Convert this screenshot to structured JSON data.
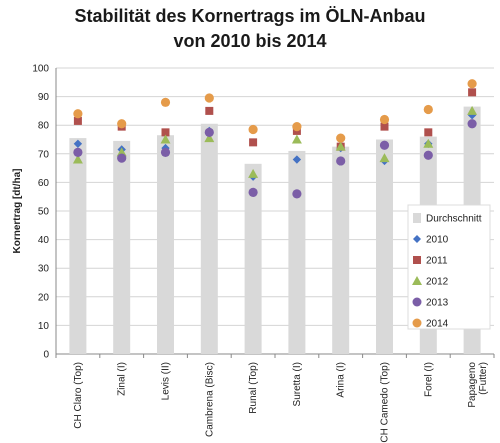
{
  "chart_data": {
    "type": "bar",
    "title_lines": [
      "Stabilität des Kornertrags im ÖLN-Anbau",
      "von 2010 bis 2014"
    ],
    "ylabel": "Kornertrag  [dt/ha]",
    "xlabel": "",
    "ylim": [
      0,
      100
    ],
    "yticks": [
      0,
      10,
      20,
      30,
      40,
      50,
      60,
      70,
      80,
      90,
      100
    ],
    "grid": true,
    "legend_position": "right",
    "categories": [
      [
        "CH Claro (Top)"
      ],
      [
        "Zinal (I)"
      ],
      [
        "Levis (II)"
      ],
      [
        "Cambrena (Bisc)"
      ],
      [
        "Runal (Top)"
      ],
      [
        "Suretta (I)"
      ],
      [
        "Arina (I)"
      ],
      [
        "CH Camedo (Top)"
      ],
      [
        "Forel (I)"
      ],
      [
        "Papageno",
        "(Futter)"
      ]
    ],
    "series": [
      {
        "name": "Durchschnitt",
        "kind": "bar",
        "color": "#d9d9d9",
        "values": [
          75.5,
          74.5,
          76.5,
          80.5,
          66.5,
          71.0,
          72.5,
          75.0,
          76.0,
          86.5
        ]
      },
      {
        "name": "2010",
        "kind": "marker",
        "marker": "diamond",
        "color": "#4472c4",
        "values": [
          73.5,
          71.5,
          72.0,
          78.0,
          62.0,
          68.0,
          72.0,
          67.5,
          73.5,
          83.5
        ]
      },
      {
        "name": "2011",
        "kind": "marker",
        "marker": "square",
        "color": "#b0504d",
        "values": [
          81.5,
          79.5,
          77.5,
          85.0,
          74.0,
          78.0,
          72.5,
          79.5,
          77.5,
          91.5
        ]
      },
      {
        "name": "2012",
        "kind": "marker",
        "marker": "triangle",
        "color": "#9bbb59",
        "values": [
          68.0,
          70.5,
          75.0,
          75.5,
          63.0,
          75.0,
          72.5,
          68.5,
          73.5,
          85.0
        ]
      },
      {
        "name": "2013",
        "kind": "marker",
        "marker": "circle",
        "color": "#7b5ea7",
        "values": [
          70.5,
          68.5,
          70.5,
          77.5,
          56.5,
          56.0,
          67.5,
          73.0,
          69.5,
          80.5
        ]
      },
      {
        "name": "2014",
        "kind": "marker",
        "marker": "circle",
        "color": "#e59b4a",
        "values": [
          84.0,
          80.5,
          88.0,
          89.5,
          78.5,
          79.5,
          75.5,
          82.0,
          85.5,
          94.5
        ]
      }
    ]
  }
}
